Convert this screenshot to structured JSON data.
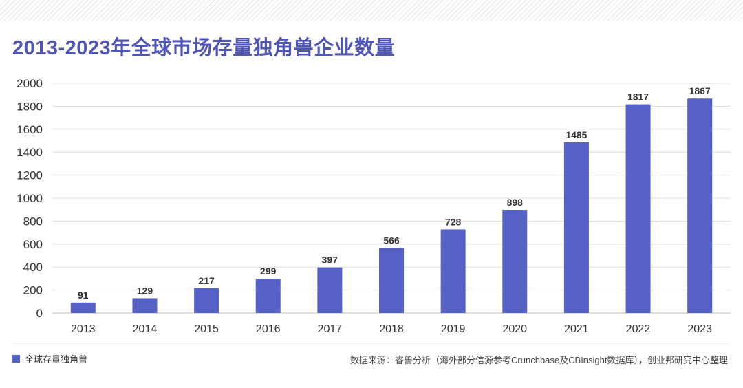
{
  "title": "2013-2023年全球市场存量独角兽企业数量",
  "colors": {
    "bar": "#5661c6",
    "title": "#4f56b8",
    "grid": "#dcdcdc",
    "axis_text": "#333333"
  },
  "chart_data": {
    "type": "bar",
    "title": "2013-2023年全球市场存量独角兽企业数量",
    "categories": [
      "2013",
      "2014",
      "2015",
      "2016",
      "2017",
      "2018",
      "2019",
      "2020",
      "2021",
      "2022",
      "2023"
    ],
    "series": [
      {
        "name": "全球存量独角兽",
        "values": [
          91,
          129,
          217,
          299,
          397,
          566,
          728,
          898,
          1485,
          1817,
          1867
        ]
      }
    ],
    "ylim": [
      0,
      2000
    ],
    "yticks": [
      0,
      200,
      400,
      600,
      800,
      1000,
      1200,
      1400,
      1600,
      1800,
      2000
    ],
    "grid": true,
    "legend_position": "bottom-left",
    "xlabel": "",
    "ylabel": ""
  },
  "legend": {
    "label": "全球存量独角兽"
  },
  "source": "数据来源：睿兽分析（海外部分信源参考Crunchbase及CBInsight数据库），创业邦研究中心整理"
}
